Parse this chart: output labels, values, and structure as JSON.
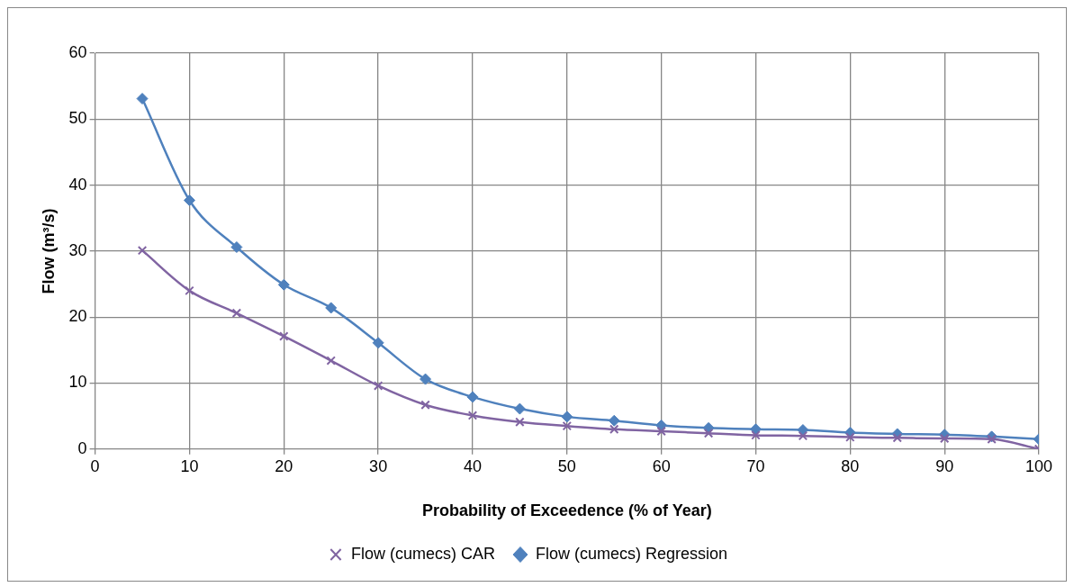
{
  "chart_data": {
    "type": "line",
    "xlabel": "Probability of Exceedence (% of Year)",
    "ylabel": "Flow (m³/s)",
    "x": [
      5,
      10,
      15,
      20,
      25,
      30,
      35,
      40,
      45,
      50,
      55,
      60,
      65,
      70,
      75,
      80,
      85,
      90,
      95,
      100
    ],
    "xlim": [
      0,
      100
    ],
    "xticks": [
      0,
      10,
      20,
      30,
      40,
      50,
      60,
      70,
      80,
      90,
      100
    ],
    "ylim": [
      0,
      60
    ],
    "yticks": [
      0,
      10,
      20,
      30,
      40,
      50,
      60
    ],
    "grid": true,
    "legend": "bottom",
    "line_style": "solid",
    "series": [
      {
        "name": "Flow (cumecs) CAR",
        "color": "#8064a2",
        "marker": "cross",
        "values": [
          30.1,
          24.0,
          20.6,
          17.1,
          13.4,
          9.6,
          6.7,
          5.1,
          4.1,
          3.5,
          3.0,
          2.7,
          2.4,
          2.1,
          2.0,
          1.8,
          1.7,
          1.6,
          1.5,
          0
        ]
      },
      {
        "name": "Flow (cumecs) Regression",
        "color": "#4f81bd",
        "marker": "diamond",
        "values": [
          53.1,
          37.7,
          30.6,
          24.9,
          21.4,
          16.1,
          10.6,
          7.9,
          6.1,
          4.9,
          4.3,
          3.6,
          3.2,
          3.0,
          2.9,
          2.5,
          2.3,
          2.2,
          1.9,
          1.5
        ]
      }
    ]
  }
}
